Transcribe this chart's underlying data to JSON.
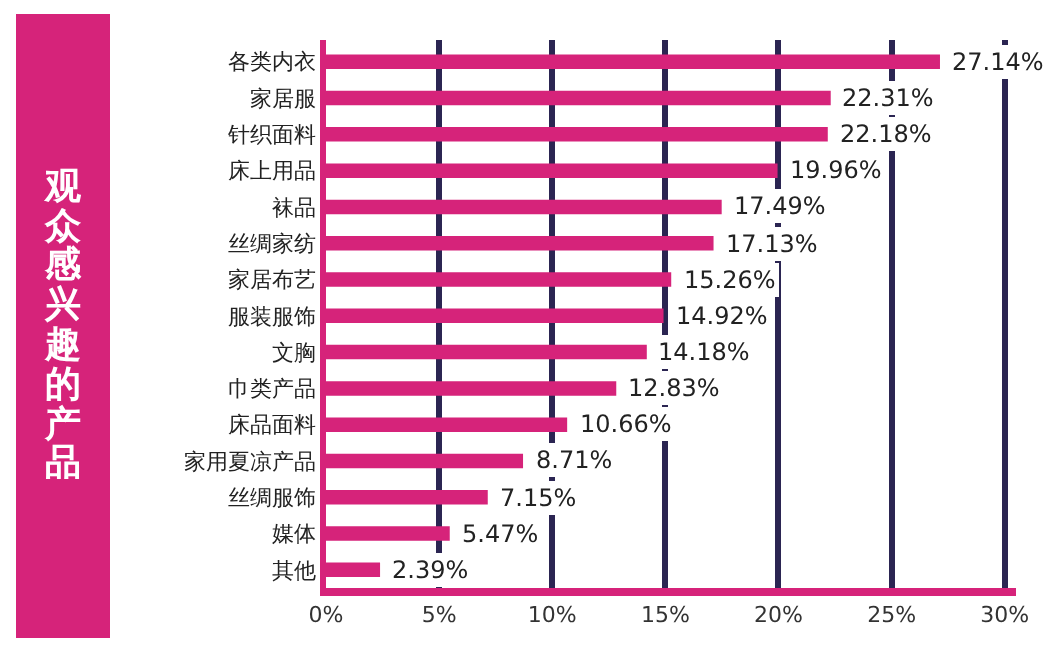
{
  "chart_data": {
    "type": "bar",
    "orientation": "horizontal",
    "title": "观众感兴趣的产品",
    "categories": [
      "各类内衣",
      "家居服",
      "针织面料",
      "床上用品",
      "袜品",
      "丝绸家纺",
      "家居布艺",
      "服装服饰",
      "文胸",
      "巾类产品",
      "床品面料",
      "家用夏凉产品",
      "丝绸服饰",
      "媒体",
      "其他"
    ],
    "values": [
      27.14,
      22.31,
      22.18,
      19.96,
      17.49,
      17.13,
      15.26,
      14.92,
      14.18,
      12.83,
      10.66,
      8.71,
      7.15,
      5.47,
      2.39
    ],
    "value_labels": [
      "27.14%",
      "22.31%",
      "22.18%",
      "19.96%",
      "17.49%",
      "17.13%",
      "15.26%",
      "14.92%",
      "14.18%",
      "12.83%",
      "10.66%",
      "8.71%",
      "7.15%",
      "5.47%",
      "2.39%"
    ],
    "color": "#d6237a",
    "xlim": [
      0,
      30.5
    ],
    "xticks": [
      {
        "value": 0,
        "label": "0%"
      },
      {
        "value": 5,
        "label": "5%"
      },
      {
        "value": 10,
        "label": "10%"
      },
      {
        "value": 15,
        "label": "15%"
      },
      {
        "value": 20,
        "label": "20%"
      },
      {
        "value": 25,
        "label": "25%"
      },
      {
        "value": 30,
        "label": "30%"
      }
    ],
    "grid": "x",
    "legend": false
  }
}
